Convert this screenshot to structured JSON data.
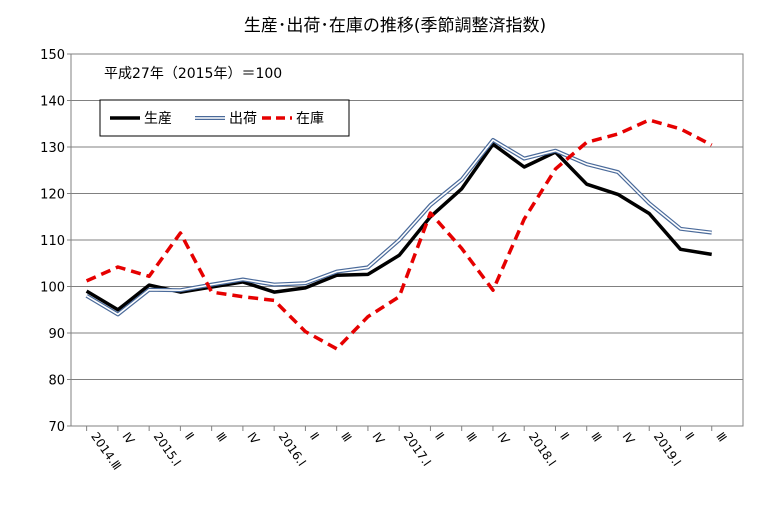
{
  "chart_data": {
    "type": "line",
    "title": "生産･出荷･在庫の推移(季節調整済指数)",
    "note": "平成27年（2015年）＝100",
    "xlabel": "",
    "ylabel": "",
    "ylim": [
      70,
      150
    ],
    "yticks": [
      70,
      80,
      90,
      100,
      110,
      120,
      130,
      140,
      150
    ],
    "grid": true,
    "legend_position": "top-left",
    "categories": [
      "2014.Ⅲ",
      "Ⅳ",
      "2015.Ⅰ",
      "Ⅱ",
      "Ⅲ",
      "Ⅳ",
      "2016.Ⅰ",
      "Ⅱ",
      "Ⅲ",
      "Ⅳ",
      "2017.Ⅰ",
      "Ⅱ",
      "Ⅲ",
      "Ⅳ",
      "2018.Ⅰ",
      "Ⅱ",
      "Ⅲ",
      "Ⅳ",
      "2019.Ⅰ",
      "Ⅱ",
      "Ⅲ"
    ],
    "series": [
      {
        "name": "生産",
        "color": "#000000",
        "style": "solid-thick",
        "values": [
          99.0,
          95.0,
          100.3,
          98.8,
          99.9,
          101.0,
          98.8,
          99.7,
          102.4,
          102.6,
          106.7,
          115.0,
          121.0,
          130.6,
          125.7,
          128.9,
          122.0,
          119.8,
          115.7,
          108.0,
          106.9
        ]
      },
      {
        "name": "出荷",
        "color": "#4a6a9a",
        "style": "double",
        "values": [
          98.0,
          94.0,
          99.3,
          99.2,
          100.4,
          101.5,
          100.4,
          100.7,
          103.2,
          104.1,
          110.0,
          117.5,
          123.0,
          131.5,
          127.5,
          129.2,
          126.3,
          124.6,
          117.9,
          112.4,
          111.6
        ]
      },
      {
        "name": "在庫",
        "color": "#e60000",
        "style": "dashed",
        "values": [
          101.2,
          104.2,
          102.2,
          111.5,
          98.8,
          97.8,
          97.0,
          90.3,
          86.6,
          93.5,
          97.8,
          115.8,
          108.2,
          99.2,
          114.5,
          125.3,
          131.0,
          132.8,
          135.8,
          133.9,
          130.4
        ]
      }
    ]
  }
}
